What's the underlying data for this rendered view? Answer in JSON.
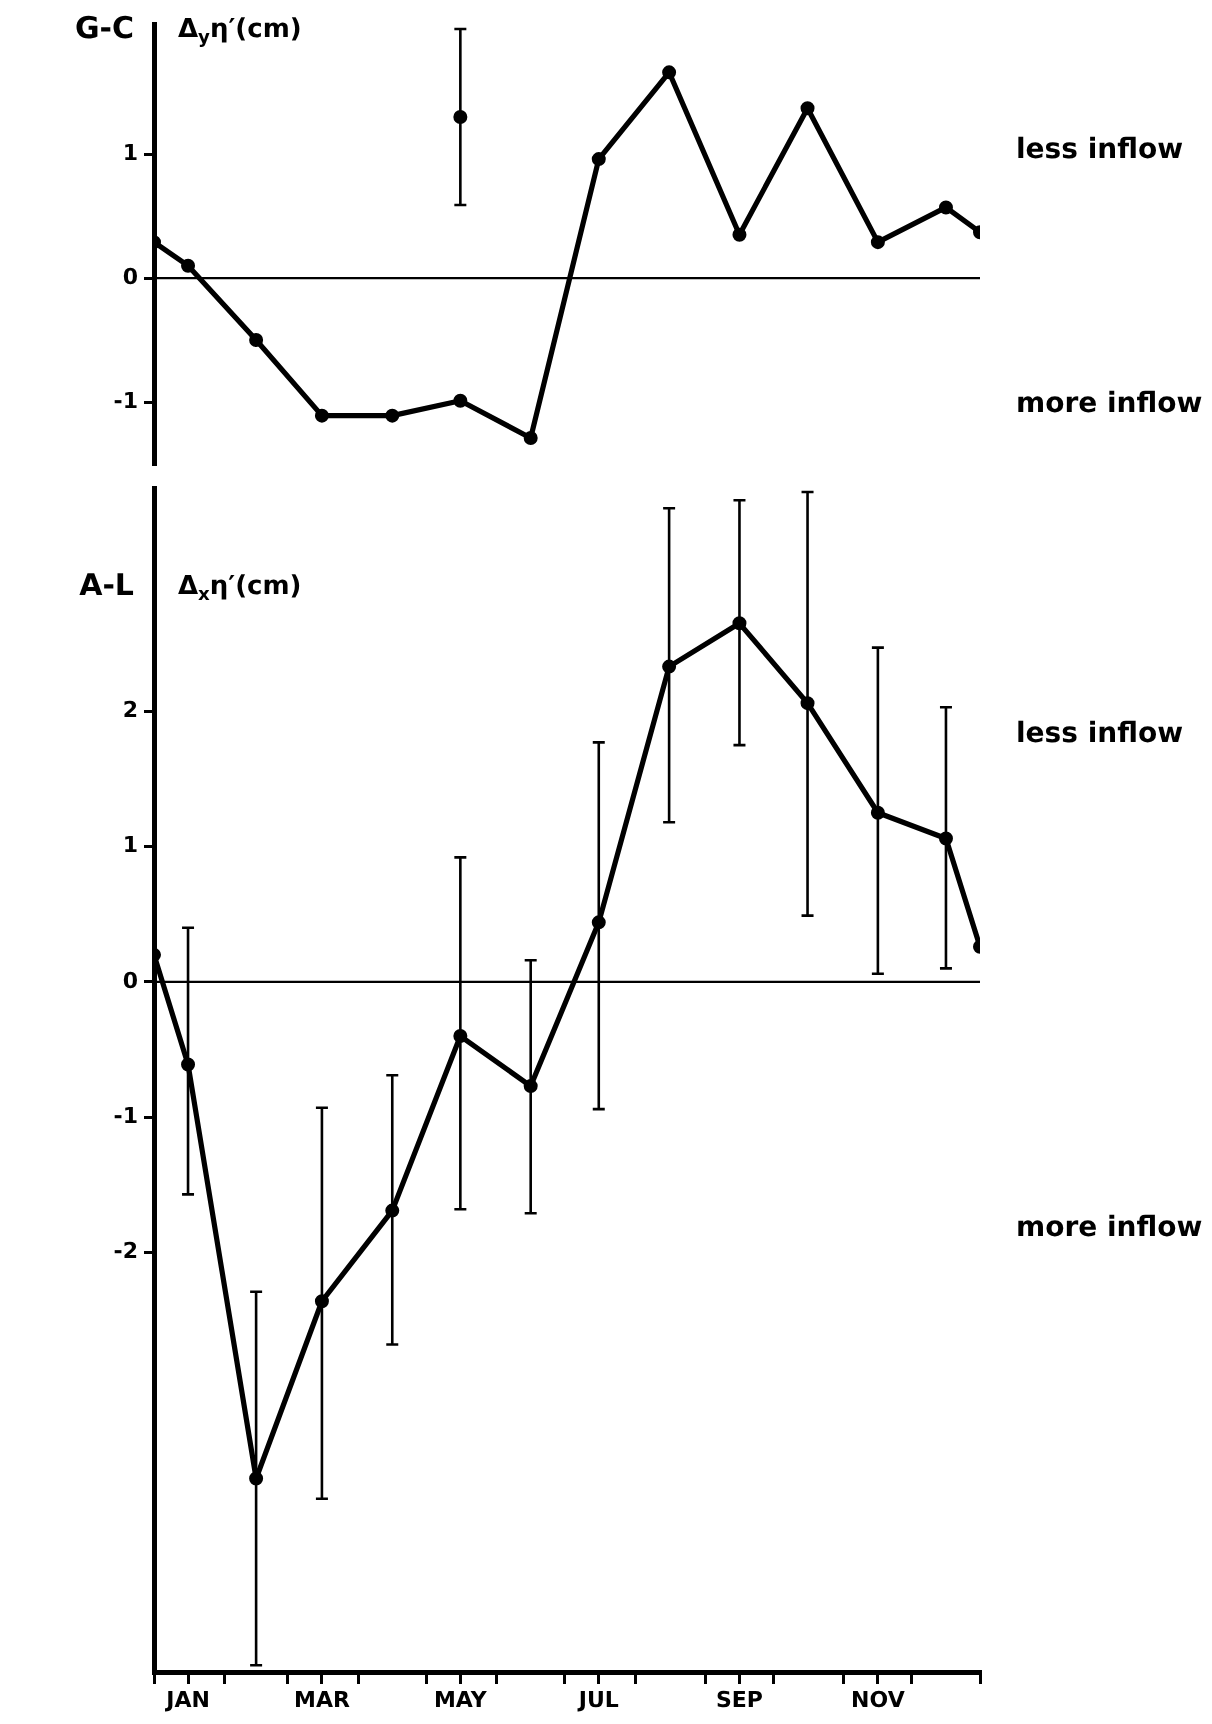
{
  "chart_data": [
    {
      "type": "line",
      "title": "G-C",
      "ylabel": "Δ$_{y}$η′(cm)",
      "x": [
        "--01-01",
        "--01-16",
        "--02-15",
        "--03-16",
        "--04-16",
        "--05-16",
        "--06-16",
        "--07-16",
        "--08-16",
        "--09-16",
        "--10-16",
        "--11-16",
        "--12-16",
        "--12-31"
      ],
      "series": [
        {
          "color": "#000000",
          "values": [
            0.29,
            0.1,
            -0.5,
            -1.11,
            -1.11,
            -0.99,
            -1.29,
            0.96,
            1.66,
            0.35,
            1.37,
            0.29,
            0.57,
            0.37
          ]
        },
        {
          "type": "scatter",
          "color": "#000000",
          "x": [
            "--05-16"
          ],
          "values": [
            1.3
          ],
          "errors": [
            [
              0.59,
              2.01
            ]
          ]
        }
      ],
      "xlim": [
        "--01-01",
        "--12-31"
      ],
      "ylim": [
        -1.5,
        2.05
      ],
      "yticks": [
        -1,
        0,
        1
      ],
      "tick_labels": "y",
      "grid": false,
      "legend": false,
      "marker": "circle",
      "line_style": "solid",
      "ref_lines": [
        {
          "axis": "y",
          "value": 0
        }
      ],
      "annotations": [
        "less inflow",
        "more inflow"
      ]
    },
    {
      "type": "line",
      "title": "A-L",
      "ylabel": "Δ$_{x}$η′(cm)",
      "x": [
        "--01-01",
        "--01-16",
        "--02-15",
        "--03-16",
        "--04-16",
        "--05-16",
        "--06-16",
        "--07-16",
        "--08-16",
        "--09-16",
        "--10-16",
        "--11-16",
        "--12-16",
        "--12-31"
      ],
      "series": [
        {
          "color": "#000000",
          "values": [
            0.2,
            -0.61,
            -3.67,
            -2.36,
            -1.69,
            -0.4,
            -0.77,
            0.44,
            2.33,
            2.65,
            2.06,
            1.25,
            1.06,
            0.26
          ],
          "errors": [
            null,
            [
              -1.57,
              0.4
            ],
            [
              -5.05,
              -2.29
            ],
            [
              -3.82,
              -0.93
            ],
            [
              -2.68,
              -0.69
            ],
            [
              -1.68,
              0.92
            ],
            [
              -1.71,
              0.16
            ],
            [
              -0.94,
              1.77
            ],
            [
              1.18,
              3.5
            ],
            [
              1.75,
              3.56
            ],
            [
              0.49,
              3.62
            ],
            [
              0.06,
              2.47
            ],
            [
              0.1,
              2.03
            ],
            null
          ]
        }
      ],
      "xlim": [
        "--01-01",
        "--12-31"
      ],
      "ylim": [
        -5.1,
        3.65
      ],
      "yticks": [
        -2,
        -1,
        0,
        1,
        2
      ],
      "xticks": [
        {
          "value": "--01-01",
          "label": null
        },
        {
          "value": "--01-16",
          "label": "JAN"
        },
        {
          "value": "--02-01",
          "label": null
        },
        {
          "value": "--03-01",
          "label": null
        },
        {
          "value": "--03-16",
          "label": "MAR"
        },
        {
          "value": "--04-01",
          "label": null
        },
        {
          "value": "--05-01",
          "label": null
        },
        {
          "value": "--05-16",
          "label": "MAY"
        },
        {
          "value": "--06-01",
          "label": null
        },
        {
          "value": "--07-01",
          "label": null
        },
        {
          "value": "--07-16",
          "label": "JUL"
        },
        {
          "value": "--08-01",
          "label": null
        },
        {
          "value": "--09-01",
          "label": null
        },
        {
          "value": "--09-16",
          "label": "SEP"
        },
        {
          "value": "--10-01",
          "label": null
        },
        {
          "value": "--11-01",
          "label": null
        },
        {
          "value": "--11-16",
          "label": "NOV"
        },
        {
          "value": "--12-01",
          "label": null
        },
        {
          "value": "--12-31",
          "label": null
        }
      ],
      "grid": false,
      "legend": false,
      "marker": "circle",
      "line_style": "solid",
      "ref_lines": [
        {
          "axis": "y",
          "value": 0
        }
      ],
      "annotations": [
        "less inflow",
        "more inflow"
      ]
    }
  ]
}
